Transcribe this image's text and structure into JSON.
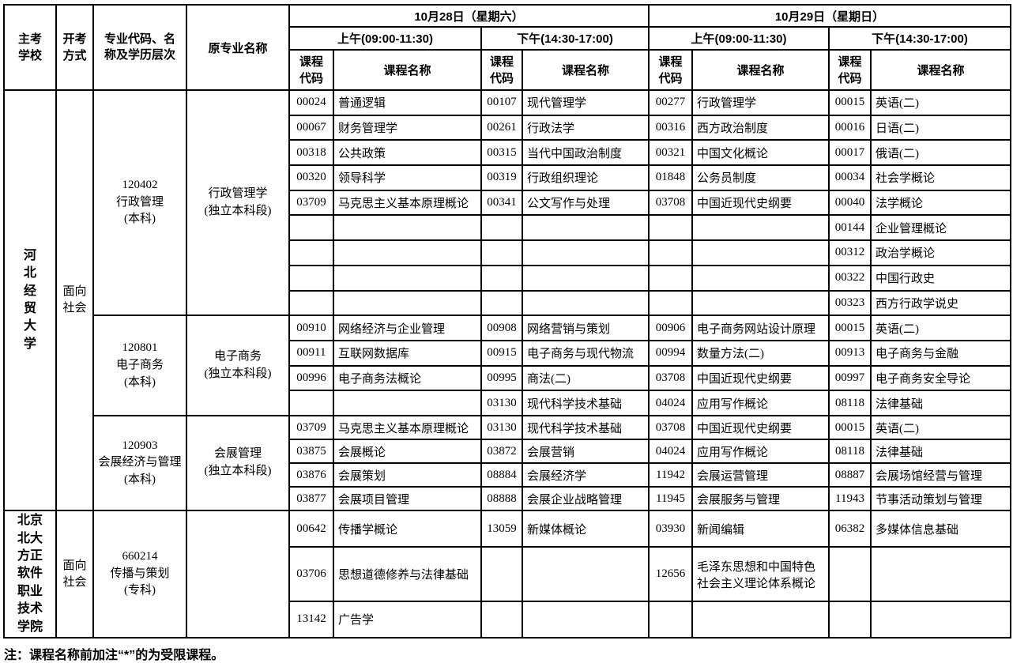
{
  "table": {
    "header": {
      "school": "主考学校",
      "method": "开考方式",
      "major": "专业代码、名称及学历层次",
      "original": "原专业名称",
      "days": [
        {
          "label": "10月28日（星期六）"
        },
        {
          "label": "10月29日（星期日）"
        }
      ],
      "am": "上午(09:00-11:30)",
      "pm": "下午(14:30-17:00)",
      "course_code": "课程代码",
      "course_name": "课程名称"
    },
    "schools": [
      {
        "name": "河北经贸大学",
        "method": "面向社会",
        "majors": [
          {
            "major": "120402\n行政管理\n(本科)",
            "original": "行政管理学\n(独立本科段)",
            "rows": [
              [
                "00024",
                "普通逻辑",
                "00107",
                "现代管理学",
                "00277",
                "行政管理学",
                "00015",
                "英语(二)"
              ],
              [
                "00067",
                "财务管理学",
                "00261",
                "行政法学",
                "00316",
                "西方政治制度",
                "00016",
                "日语(二)"
              ],
              [
                "00318",
                "公共政策",
                "00315",
                "当代中国政治制度",
                "00321",
                "中国文化概论",
                "00017",
                "俄语(二)"
              ],
              [
                "00320",
                "领导科学",
                "00319",
                "行政组织理论",
                "01848",
                "公务员制度",
                "00034",
                "社会学概论"
              ],
              [
                "03709",
                "马克思主义基本原理概论",
                "00341",
                "公文写作与处理",
                "03708",
                "中国近现代史纲要",
                "00040",
                "法学概论"
              ],
              [
                "",
                "",
                "",
                "",
                "",
                "",
                "00144",
                "企业管理概论"
              ],
              [
                "",
                "",
                "",
                "",
                "",
                "",
                "00312",
                "政治学概论"
              ],
              [
                "",
                "",
                "",
                "",
                "",
                "",
                "00322",
                "中国行政史"
              ],
              [
                "",
                "",
                "",
                "",
                "",
                "",
                "00323",
                "西方行政学说史"
              ]
            ]
          },
          {
            "major": "120801\n电子商务\n(本科)",
            "original": "电子商务\n(独立本科段)",
            "rows": [
              [
                "00910",
                "网络经济与企业管理",
                "00908",
                "网络营销与策划",
                "00906",
                "电子商务网站设计原理",
                "00015",
                "英语(二)"
              ],
              [
                "00911",
                "互联网数据库",
                "00915",
                "电子商务与现代物流",
                "00994",
                "数量方法(二)",
                "00913",
                "电子商务与金融"
              ],
              [
                "00996",
                "电子商务法概论",
                "00995",
                "商法(二)",
                "03708",
                "中国近现代史纲要",
                "00997",
                "电子商务安全导论"
              ],
              [
                "",
                "",
                "03130",
                "现代科学技术基础",
                "04024",
                "应用写作概论",
                "08118",
                "法律基础"
              ]
            ]
          },
          {
            "major": "120903\n会展经济与管理\n(本科)",
            "original": "会展管理\n(独立本科段)",
            "rows": [
              [
                "03709",
                "马克思主义基本原理概论",
                "03130",
                "现代科学技术基础",
                "03708",
                "中国近现代史纲要",
                "00015",
                "英语(二)"
              ],
              [
                "03875",
                "会展概论",
                "03872",
                "会展营销",
                "04024",
                "应用写作概论",
                "08118",
                "法律基础"
              ],
              [
                "03876",
                "会展策划",
                "08884",
                "会展经济学",
                "11942",
                "会展运营管理",
                "08887",
                "会展场馆经营与管理"
              ],
              [
                "03877",
                "会展项目管理",
                "08888",
                "会展企业战略管理",
                "11945",
                "会展服务与管理",
                "11943",
                "节事活动策划与管理"
              ]
            ]
          }
        ]
      },
      {
        "name": "北京北大方正软件职业技术学院",
        "method": "面向社会",
        "majors": [
          {
            "major": "660214\n传播与策划\n(专科)",
            "original": "",
            "rows": [
              [
                "00642",
                "传播学概论",
                "13059",
                "新媒体概论",
                "03930",
                "新闻编辑",
                "06382",
                "多媒体信息基础"
              ],
              [
                "03706",
                "思想道德修养与法律基础",
                "",
                "",
                "12656",
                "毛泽东思想和中国特色社会主义理论体系概论",
                "",
                ""
              ],
              [
                "13142",
                "广告学",
                "",
                "",
                "",
                "",
                "",
                ""
              ]
            ]
          }
        ]
      }
    ]
  },
  "note": "注：课程名称前加注“*”的为受限课程。"
}
